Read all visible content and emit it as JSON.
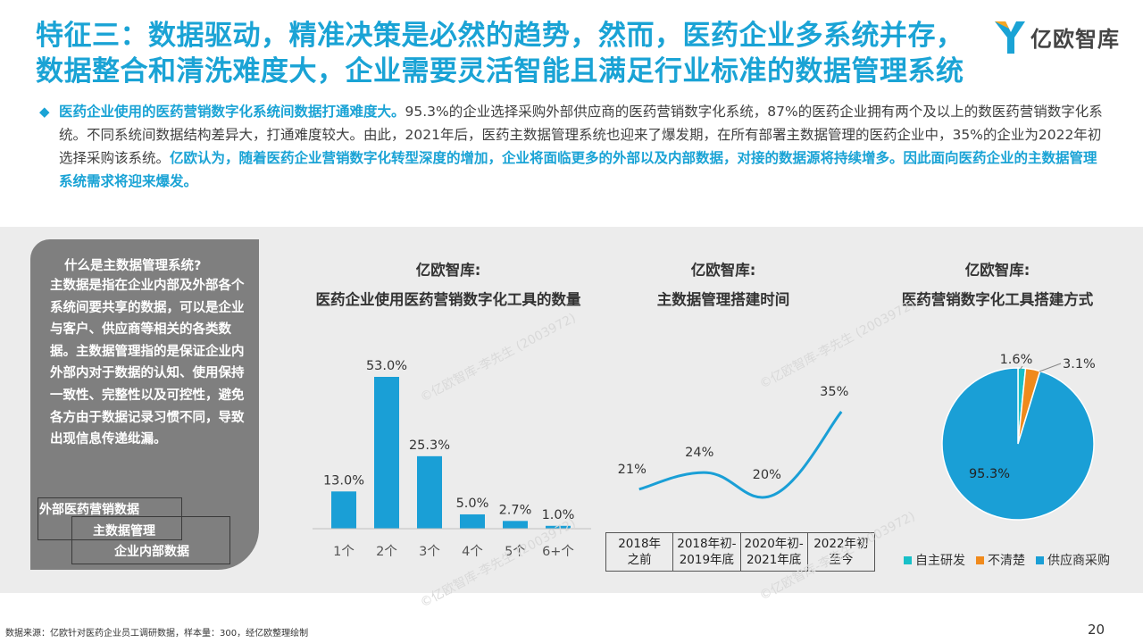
{
  "header": {
    "title_line1": "特征三：数据驱动，精准决策是必然的趋势，然而，医药企业多系统并存，",
    "title_line2": "数据整合和清洗难度大，企业需要灵活智能且满足行业标准的数据管理系统",
    "logo_text": "亿欧智库"
  },
  "intro": {
    "lead": "医药企业使用的医药营销数字化系统间数据打通难度大。",
    "body": "95.3%的企业选择采购外部供应商的医药营销数字化系统，87%的医药企业拥有两个及以上的数医药营销数字化系统。不同系统间数据结构差异大，打通难度较大。由此，2021年后，医药主数据管理系统也迎来了爆发期，在所有部署主数据管理的医药企业中，35%的企业为2022年初选择采购该系统。",
    "highlight": "亿欧认为，随着医药企业营销数字化转型深度的增加，企业将面临更多的外部以及内部数据，对接的数据源将持续增多。因此面向医药企业的主数据管理系统需求将迎来爆发。"
  },
  "sidebar": {
    "heading": "什么是主数据管理系统?",
    "text": "主数据是指在企业内部及外部各个系统间要共享的数据，可以是企业与客户、供应商等相关的各类数据。主数据管理指的是保证企业内外部内对于数据的认知、使用保持一致性、完整性以及可控性，避免各方由于数据记录习惯不同，导致出现信息传递纰漏。",
    "label_outer": "外部医药营销数据",
    "label_center": "主数据管理",
    "label_inner": "企业内部数据"
  },
  "charts": {
    "bar_title1": "亿欧智库:",
    "bar_title2": "医药企业使用医药营销数字化工具的数量",
    "line_title1": "亿欧智库:",
    "line_title2": "主数据管理搭建时间",
    "pie_title1": "亿欧智库:",
    "pie_title2": "医药营销数字化工具搭建方式"
  },
  "chart_data": [
    {
      "type": "bar",
      "categories": [
        "1个",
        "2个",
        "3个",
        "4个",
        "5个",
        "6+个"
      ],
      "values": [
        13.0,
        53.0,
        25.3,
        5.0,
        2.7,
        1.0
      ],
      "labels": [
        "13.0%",
        "53.0%",
        "25.3%",
        "5.0%",
        "2.7%",
        "1.0%"
      ],
      "color": "#1a9fd6"
    },
    {
      "type": "line",
      "categories": [
        "2018年\n之前",
        "2018年初-\n2019年底",
        "2020年初-\n2021年底",
        "2022年初\n至今"
      ],
      "values": [
        21,
        24,
        20,
        35
      ],
      "labels": [
        "21%",
        "24%",
        "20%",
        "35%"
      ],
      "color": "#1a9fd6"
    },
    {
      "type": "pie",
      "slices": [
        {
          "name": "自主研发",
          "value": 1.6,
          "label": "1.6%",
          "color": "#18c0c8"
        },
        {
          "name": "不清楚",
          "value": 3.1,
          "label": "3.1%",
          "color": "#f08a1c"
        },
        {
          "name": "供应商采购",
          "value": 95.3,
          "label": "95.3%",
          "color": "#1a9fd6"
        }
      ]
    }
  ],
  "watermark": "©亿欧智库-李先生 (2003972)",
  "footer": {
    "source": "数据来源：亿欧针对医药企业员工调研数据，样本量：300，经亿欧整理绘制",
    "page": "20"
  }
}
